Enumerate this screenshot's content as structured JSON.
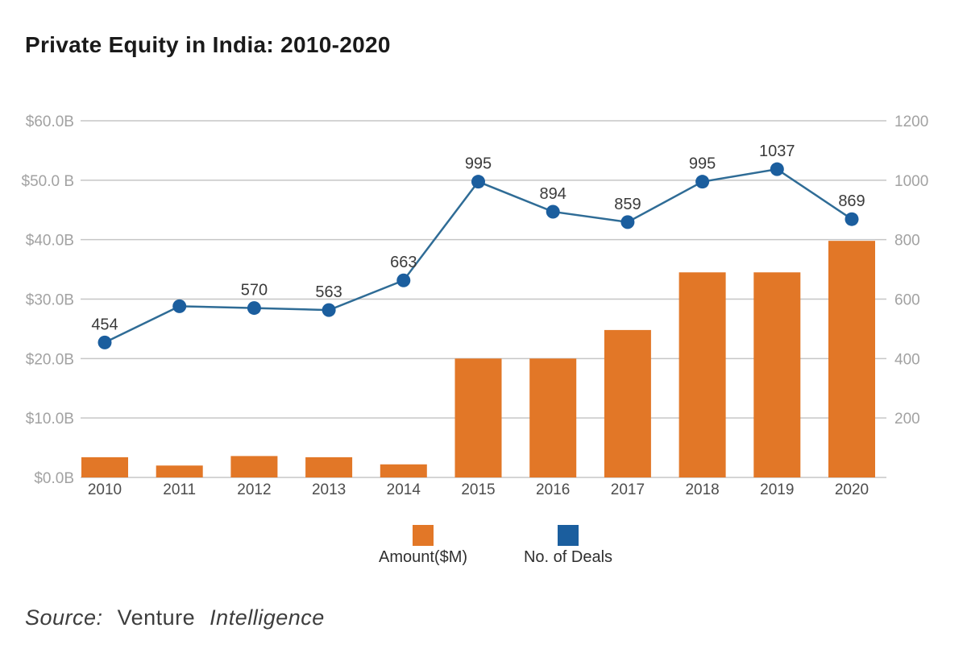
{
  "chart_data": {
    "type": "combo",
    "title": "Private Equity in India: 2010-2020",
    "categories": [
      "2010",
      "2011",
      "2012",
      "2013",
      "2014",
      "2015",
      "2016",
      "2017",
      "2018",
      "2019",
      "2020"
    ],
    "series": [
      {
        "name": "Amount($M)",
        "type": "bar",
        "axis": "left",
        "color": "#E27727",
        "unit": "USD billions as displayed on left axis",
        "values": [
          3.4,
          2.0,
          3.6,
          3.4,
          2.2,
          20.0,
          20.0,
          24.8,
          34.5,
          34.5,
          39.8
        ]
      },
      {
        "name": "No. of Deals",
        "type": "line",
        "axis": "right",
        "color": "#1B5E9E",
        "line_color": "#2F6C96",
        "values": [
          454,
          576,
          570,
          563,
          663,
          995,
          894,
          859,
          995,
          1037,
          869
        ],
        "point_labels": [
          "454",
          "",
          "570",
          "563",
          "663",
          "995",
          "894",
          "859",
          "995",
          "1037",
          "869"
        ]
      }
    ],
    "left_axis": {
      "min": 0,
      "max": 60,
      "ticks": [
        "$60.0B",
        "$50.0 B",
        "$40.0B",
        "$30.0B",
        "$20.0B",
        "$10.0B",
        "$0.0B"
      ]
    },
    "right_axis": {
      "min": 0,
      "max": 1200,
      "ticks": [
        "1200",
        "1000",
        "800",
        "600",
        "400",
        "200"
      ]
    },
    "grid": "horizontal gridlines on",
    "legend_position": "bottom"
  },
  "legend": {
    "items": [
      {
        "label": "Amount($M)",
        "color": "#E27727"
      },
      {
        "label": "No. of Deals",
        "color": "#1B5E9E"
      }
    ]
  },
  "source": {
    "prefix": "Source:",
    "publisher_regular": "Venture",
    "publisher_italic": "Intelligence"
  }
}
